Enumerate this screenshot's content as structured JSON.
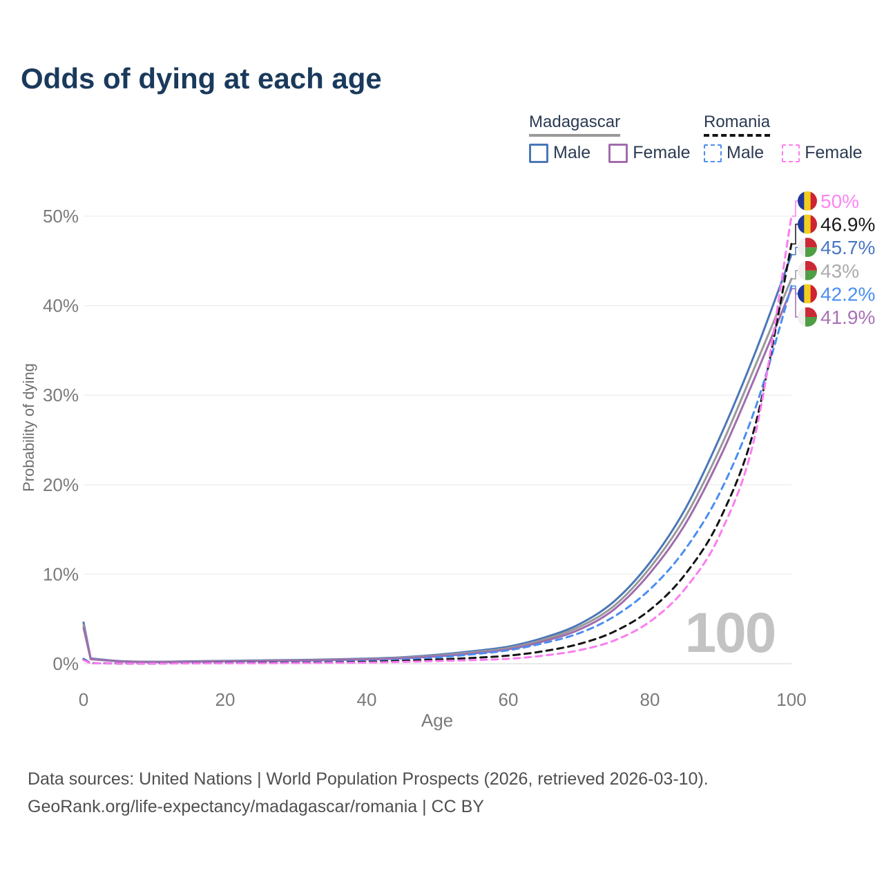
{
  "title": "Odds of dying at each age",
  "legend": {
    "groups": [
      {
        "name": "Madagascar",
        "line_style": "solid",
        "swatch_color": "#999999",
        "items": [
          {
            "label": "Male",
            "color": "#4a77b8",
            "dashed": false
          },
          {
            "label": "Female",
            "color": "#a06cad",
            "dashed": false
          }
        ]
      },
      {
        "name": "Romania",
        "line_style": "dashed",
        "swatch_color": "#141414",
        "items": [
          {
            "label": "Male",
            "color": "#4b8ef0",
            "dashed": true
          },
          {
            "label": "Female",
            "color": "#fb7df0",
            "dashed": true
          }
        ]
      }
    ]
  },
  "chart_data": {
    "type": "line",
    "title": "Odds of dying at each age",
    "xlabel": "Age",
    "ylabel": "Probability of dying",
    "xlim": [
      0,
      100
    ],
    "ylim": [
      0,
      52
    ],
    "grid": "horizontal",
    "x_ticks": [
      0,
      20,
      40,
      60,
      80,
      100
    ],
    "x_tick_labels": [
      "0",
      "20",
      "40",
      "60",
      "80",
      "100"
    ],
    "y_ticks": [
      0,
      10,
      20,
      30,
      40,
      50
    ],
    "y_tick_labels": [
      "0%",
      "10%",
      "20%",
      "30%",
      "40%",
      "50%"
    ],
    "watermark": "100",
    "ages": [
      0,
      1,
      5,
      10,
      15,
      20,
      25,
      30,
      35,
      40,
      45,
      50,
      55,
      60,
      65,
      70,
      75,
      80,
      85,
      90,
      95,
      100
    ],
    "series": [
      {
        "name": "Madagascar Male",
        "country": "Madagascar",
        "sex": "Male",
        "color": "#4a77b8",
        "dashed": false,
        "flag": "madagascar",
        "values": [
          4.6,
          0.6,
          0.3,
          0.22,
          0.27,
          0.32,
          0.37,
          0.42,
          0.48,
          0.57,
          0.72,
          1.0,
          1.4,
          1.9,
          2.9,
          4.4,
          7.0,
          11.3,
          17.3,
          25.5,
          35.0,
          45.7
        ],
        "end_label": "45.7%",
        "end_label_color": "#4a77c4"
      },
      {
        "name": "Madagascar Both sexes",
        "country": "Madagascar",
        "sex": "Both",
        "color": "#999999",
        "dashed": false,
        "flag": "madagascar",
        "values": [
          4.3,
          0.55,
          0.28,
          0.2,
          0.24,
          0.29,
          0.33,
          0.38,
          0.44,
          0.52,
          0.66,
          0.92,
          1.28,
          1.75,
          2.7,
          4.1,
          6.5,
          10.7,
          16.4,
          24.2,
          33.5,
          43.0
        ],
        "end_label": "43%",
        "end_label_color": "#ababab"
      },
      {
        "name": "Madagascar Female",
        "country": "Madagascar",
        "sex": "Female",
        "color": "#a06cad",
        "dashed": false,
        "flag": "madagascar",
        "values": [
          4.0,
          0.5,
          0.26,
          0.18,
          0.22,
          0.26,
          0.3,
          0.34,
          0.4,
          0.47,
          0.6,
          0.83,
          1.15,
          1.6,
          2.5,
          3.8,
          6.1,
          10.1,
          15.6,
          23.2,
          32.3,
          41.9
        ],
        "end_label": "41.9%",
        "end_label_color": "#a872b5"
      },
      {
        "name": "Romania Male",
        "country": "Romania",
        "sex": "Male",
        "color": "#4b8ef0",
        "dashed": true,
        "flag": "romania",
        "values": [
          0.55,
          0.06,
          0.03,
          0.03,
          0.06,
          0.1,
          0.12,
          0.15,
          0.2,
          0.3,
          0.45,
          0.7,
          1.05,
          1.5,
          2.3,
          3.4,
          5.3,
          8.3,
          12.8,
          19.3,
          28.8,
          42.2
        ],
        "end_label": "42.2%",
        "end_label_color": "#4b8ef0"
      },
      {
        "name": "Romania Both sexes",
        "country": "Romania",
        "sex": "Both",
        "color": "#141414",
        "dashed": true,
        "flag": "romania",
        "values": [
          0.45,
          0.05,
          0.025,
          0.025,
          0.045,
          0.07,
          0.09,
          0.11,
          0.14,
          0.21,
          0.32,
          0.47,
          0.65,
          0.9,
          1.4,
          2.2,
          3.6,
          6.0,
          10.0,
          16.3,
          27.0,
          46.9
        ],
        "end_label": "46.9%",
        "end_label_color": "#1a1a1a"
      },
      {
        "name": "Romania Female",
        "country": "Romania",
        "sex": "Female",
        "color": "#fb7df0",
        "dashed": true,
        "flag": "romania",
        "values": [
          0.4,
          0.045,
          0.02,
          0.02,
          0.03,
          0.04,
          0.05,
          0.07,
          0.09,
          0.13,
          0.2,
          0.3,
          0.4,
          0.55,
          0.9,
          1.5,
          2.6,
          4.7,
          8.4,
          14.6,
          26.0,
          50.0
        ],
        "end_label": "50%",
        "end_label_color": "#fd86f2"
      }
    ]
  },
  "flags": {
    "romania": {
      "colors": [
        "#20379c",
        "#f2ce1d",
        "#cf2233"
      ]
    },
    "madagascar": {
      "white": "#efefef",
      "red": "#cc2936",
      "green": "#4f9e45"
    }
  },
  "footer": {
    "line1": "Data sources: United Nations | World Population Prospects (2026, retrieved 2026-03-10).",
    "line2": "GeoRank.org/life-expectancy/madagascar/romania | CC BY"
  }
}
